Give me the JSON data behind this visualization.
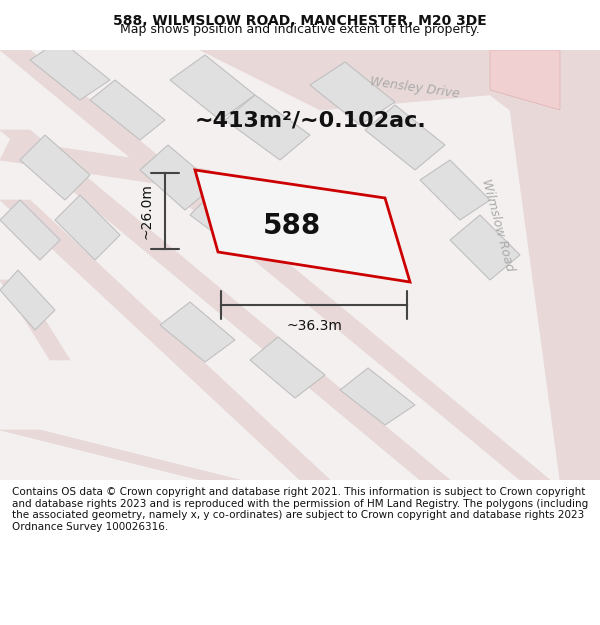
{
  "title": "588, WILMSLOW ROAD, MANCHESTER, M20 3DE",
  "subtitle": "Map shows position and indicative extent of the property.",
  "area_text": "~413m²/~0.102ac.",
  "label_588": "588",
  "dim_width": "~36.3m",
  "dim_height": "~26.0m",
  "road_label_1": "Wensley Drive",
  "road_label_2": "Wilmslow Road",
  "footer": "Contains OS data © Crown copyright and database right 2021. This information is subject to Crown copyright and database rights 2023 and is reproduced with the permission of HM Land Registry. The polygons (including the associated geometry, namely x, y co-ordinates) are subject to Crown copyright and database rights 2023 Ordnance Survey 100026316.",
  "bg_color": "#f5f0f0",
  "map_bg": "#f8f6f4",
  "plot_border_color": "#cc0000",
  "road_fill": "#e8d8d8",
  "block_fill": "#e8e8e8",
  "block_stroke": "#cccccc",
  "dim_color": "#444444",
  "road_text_color": "#aaaaaa",
  "title_fontsize": 10,
  "subtitle_fontsize": 9,
  "area_fontsize": 16,
  "label_fontsize": 20,
  "dim_fontsize": 10,
  "footer_fontsize": 7.5
}
